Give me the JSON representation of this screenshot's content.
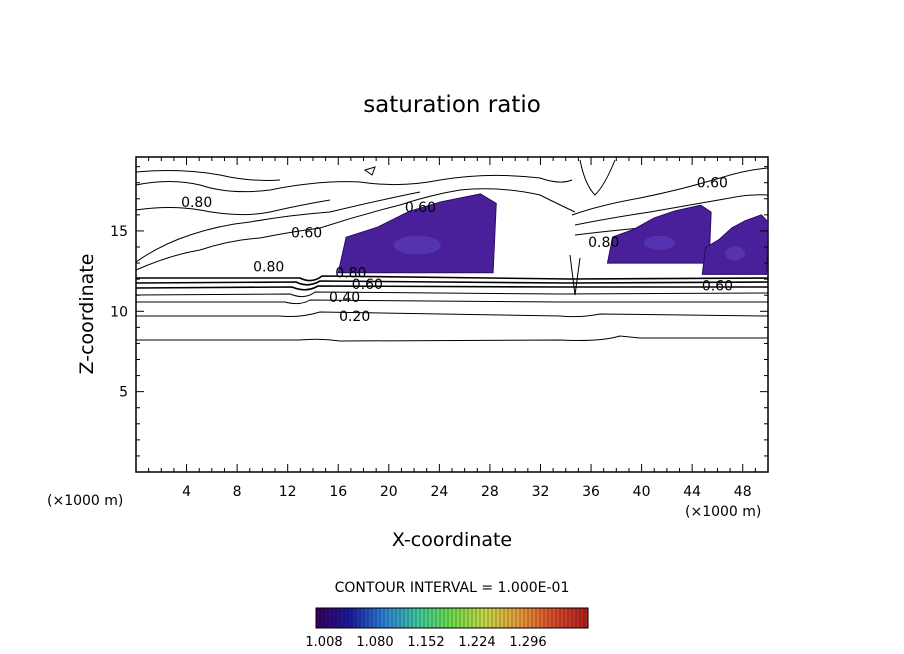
{
  "chart_data": {
    "type": "contour",
    "title": "saturation ratio",
    "xlabel": "X-coordinate",
    "ylabel": "Z-coordinate",
    "x_unit_left": "(×1000 m)",
    "x_unit_right": "(×1000 m)",
    "xlim": [
      0,
      50
    ],
    "ylim": [
      0,
      19.6
    ],
    "x_ticks": [
      4,
      8,
      12,
      16,
      20,
      24,
      28,
      32,
      36,
      40,
      44,
      48
    ],
    "y_ticks": [
      5,
      10,
      15
    ],
    "contour_interval_text": "CONTOUR INTERVAL = 1.000E-01",
    "contour_labels": [
      {
        "text": "0.80",
        "x": 4.8,
        "z": 16.8
      },
      {
        "text": "0.60",
        "x": 22.5,
        "z": 16.5
      },
      {
        "text": "0.60",
        "x": 45.6,
        "z": 18.0
      },
      {
        "text": "0.60",
        "x": 13.5,
        "z": 14.9
      },
      {
        "text": "0.80",
        "x": 10.5,
        "z": 12.8
      },
      {
        "text": "0.80",
        "x": 17.0,
        "z": 12.4
      },
      {
        "text": "0.60",
        "x": 18.3,
        "z": 11.7
      },
      {
        "text": "0.40",
        "x": 16.5,
        "z": 10.9
      },
      {
        "text": "0.20",
        "x": 17.3,
        "z": 9.7
      },
      {
        "text": "0.60",
        "x": 46.0,
        "z": 11.6
      },
      {
        "text": "0.80",
        "x": 37.0,
        "z": 14.3
      }
    ],
    "supersaturated_regions": [
      {
        "x_range": [
          16.0,
          28.5
        ],
        "z_range": [
          12.4,
          17.3
        ]
      },
      {
        "x_range": [
          37.3,
          45.5
        ],
        "z_range": [
          13.0,
          16.6
        ]
      },
      {
        "x_range": [
          44.8,
          50.0
        ],
        "z_range": [
          12.3,
          16.0
        ]
      }
    ],
    "colorbar": {
      "ticks": [
        "1.008",
        "1.080",
        "1.152",
        "1.224",
        "1.296"
      ],
      "colors": [
        "#3b005e",
        "#1a1a9e",
        "#2f7fd6",
        "#3ec9a0",
        "#6fdd4a",
        "#c8d64a",
        "#e69a3a",
        "#d94a2a",
        "#b01e1e"
      ]
    }
  }
}
